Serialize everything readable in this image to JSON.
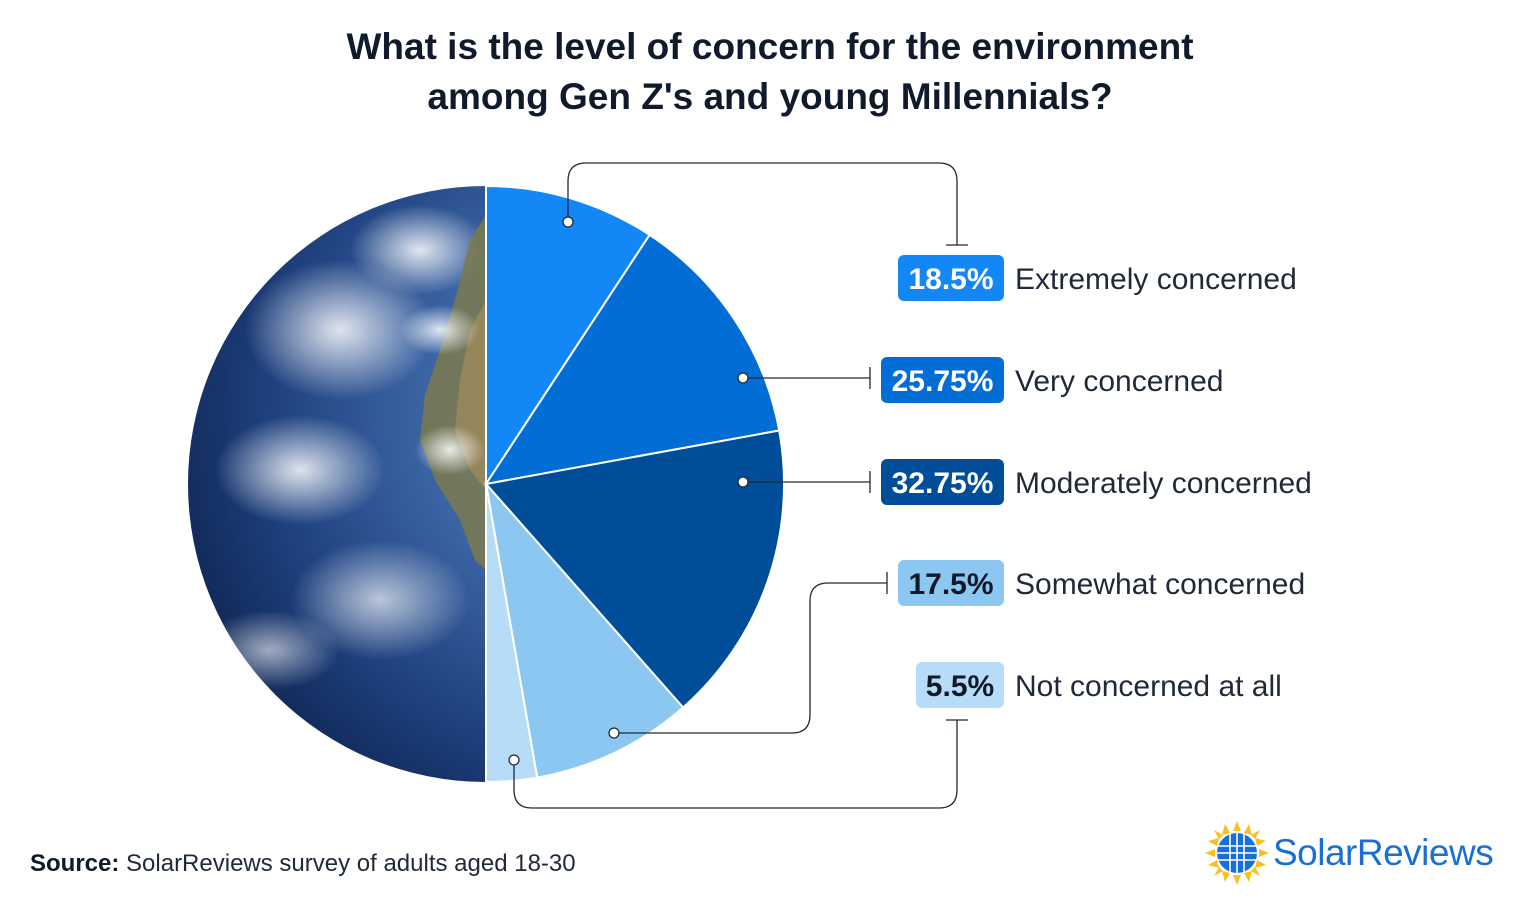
{
  "chart_data": {
    "type": "pie",
    "title_lines": [
      "What is the level of concern for the environment",
      "among Gen Z's and young Millennials?"
    ],
    "categories": [
      "Extremely concerned",
      "Very concerned",
      "Moderately concerned",
      "Somewhat concerned",
      "Not concerned at all"
    ],
    "values": [
      18.5,
      25.75,
      32.75,
      17.5,
      5.5
    ],
    "value_labels": [
      "18.5%",
      "25.75%",
      "32.75%",
      "17.5%",
      "5.5%"
    ],
    "colors": [
      "#1287f5",
      "#036dd6",
      "#004e9a",
      "#8cc7f2",
      "#b7dcf7"
    ],
    "label_text_colors": [
      "#ffffff",
      "#ffffff",
      "#ffffff",
      "#111827",
      "#111827"
    ],
    "legend": "right"
  },
  "source": {
    "label": "Source:",
    "text": "SolarReviews survey of adults aged 18-30"
  },
  "logo": {
    "text": "SolarReviews",
    "colors": {
      "text": "#1a6fd6",
      "sun": "#f6c21b"
    }
  }
}
